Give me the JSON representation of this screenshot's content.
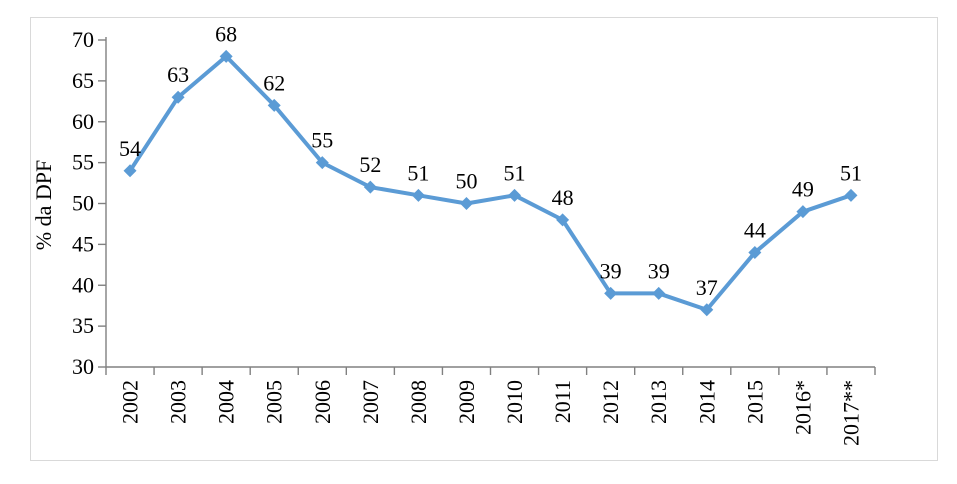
{
  "chart_data": {
    "type": "line",
    "title": "",
    "xlabel": "",
    "ylabel": "% da DPF",
    "categories": [
      "2002",
      "2003",
      "2004",
      "2005",
      "2006",
      "2007",
      "2008",
      "2009",
      "2010",
      "2011",
      "2012",
      "2013",
      "2014",
      "2015",
      "2016*",
      "2017**"
    ],
    "series": [
      {
        "name": "% da DPF",
        "values": [
          54,
          63,
          68,
          62,
          55,
          52,
          51,
          50,
          51,
          48,
          39,
          39,
          37,
          44,
          49,
          51
        ]
      }
    ],
    "data_labels": [
      "54",
      "63",
      "68",
      "62",
      "55",
      "52",
      "51",
      "50",
      "51",
      "48",
      "39",
      "39",
      "37",
      "44",
      "49",
      "51"
    ],
    "ylim": [
      30,
      70
    ],
    "y_ticks": [
      "30",
      "35",
      "40",
      "45",
      "50",
      "55",
      "60",
      "65",
      "70"
    ],
    "grid": false,
    "legend": false,
    "marker": "diamond",
    "line_color": "#5B9BD5",
    "axis_color": "#808080",
    "text_color": "#000000",
    "frame_border_color": "#d9d9d9"
  }
}
